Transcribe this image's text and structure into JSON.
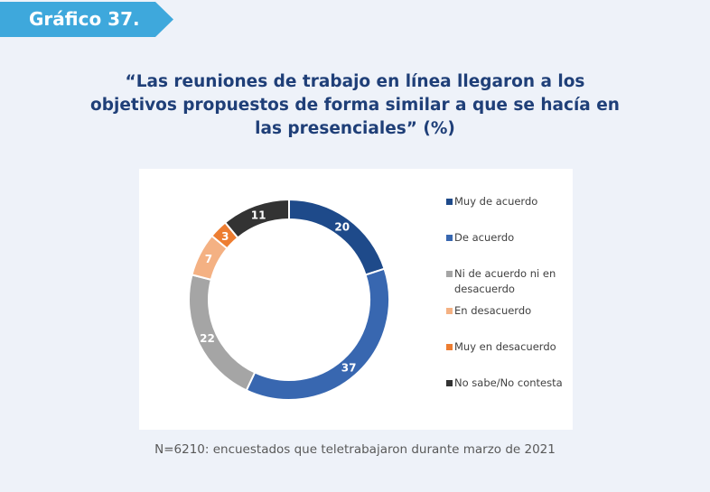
{
  "header": {
    "tag": "Gráfico 37."
  },
  "title": "“Las reuniones de trabajo en línea llegaron a los objetivos propuestos de forma similar a que se hacía en las presenciales” (%)",
  "chart_data": {
    "type": "pie",
    "donut": true,
    "categories": [
      "Muy de acuerdo",
      "De acuerdo",
      "Ni de acuerdo ni en desacuerdo",
      "En desacuerdo",
      "Muy en desacuerdo",
      "No sabe/No contesta"
    ],
    "values": [
      20,
      37,
      22,
      7,
      3,
      11
    ],
    "colors": [
      "#1e4a8a",
      "#3867b0",
      "#a5a5a5",
      "#f4b183",
      "#ed7d31",
      "#333333"
    ],
    "data_labels": [
      "20",
      "37",
      "22",
      "7",
      "3",
      "11"
    ],
    "legend_position": "right"
  },
  "footnote": "N=6210: encuestados que teletrabajaron durante marzo de 2021"
}
